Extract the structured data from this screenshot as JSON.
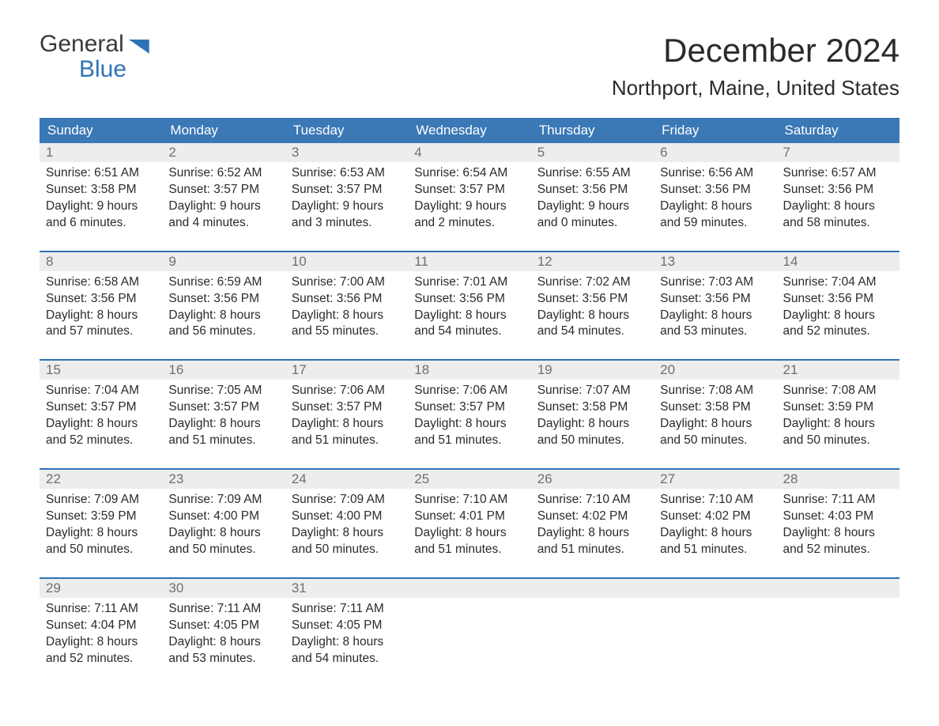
{
  "logo": {
    "line1": "General",
    "line2": "Blue"
  },
  "title": "December 2024",
  "location": "Northport, Maine, United States",
  "colors": {
    "header_bg": "#3b78b6",
    "header_text": "#ffffff",
    "daynum_bg": "#ededed",
    "daynum_text": "#6f6f6f",
    "week_sep": "#2f73b7",
    "body_text": "#2b2b2b",
    "logo_blue": "#2f73b7"
  },
  "day_headers": [
    "Sunday",
    "Monday",
    "Tuesday",
    "Wednesday",
    "Thursday",
    "Friday",
    "Saturday"
  ],
  "weeks": [
    [
      {
        "n": "1",
        "sr": "Sunrise: 6:51 AM",
        "ss": "Sunset: 3:58 PM",
        "d1": "Daylight: 9 hours",
        "d2": "and 6 minutes."
      },
      {
        "n": "2",
        "sr": "Sunrise: 6:52 AM",
        "ss": "Sunset: 3:57 PM",
        "d1": "Daylight: 9 hours",
        "d2": "and 4 minutes."
      },
      {
        "n": "3",
        "sr": "Sunrise: 6:53 AM",
        "ss": "Sunset: 3:57 PM",
        "d1": "Daylight: 9 hours",
        "d2": "and 3 minutes."
      },
      {
        "n": "4",
        "sr": "Sunrise: 6:54 AM",
        "ss": "Sunset: 3:57 PM",
        "d1": "Daylight: 9 hours",
        "d2": "and 2 minutes."
      },
      {
        "n": "5",
        "sr": "Sunrise: 6:55 AM",
        "ss": "Sunset: 3:56 PM",
        "d1": "Daylight: 9 hours",
        "d2": "and 0 minutes."
      },
      {
        "n": "6",
        "sr": "Sunrise: 6:56 AM",
        "ss": "Sunset: 3:56 PM",
        "d1": "Daylight: 8 hours",
        "d2": "and 59 minutes."
      },
      {
        "n": "7",
        "sr": "Sunrise: 6:57 AM",
        "ss": "Sunset: 3:56 PM",
        "d1": "Daylight: 8 hours",
        "d2": "and 58 minutes."
      }
    ],
    [
      {
        "n": "8",
        "sr": "Sunrise: 6:58 AM",
        "ss": "Sunset: 3:56 PM",
        "d1": "Daylight: 8 hours",
        "d2": "and 57 minutes."
      },
      {
        "n": "9",
        "sr": "Sunrise: 6:59 AM",
        "ss": "Sunset: 3:56 PM",
        "d1": "Daylight: 8 hours",
        "d2": "and 56 minutes."
      },
      {
        "n": "10",
        "sr": "Sunrise: 7:00 AM",
        "ss": "Sunset: 3:56 PM",
        "d1": "Daylight: 8 hours",
        "d2": "and 55 minutes."
      },
      {
        "n": "11",
        "sr": "Sunrise: 7:01 AM",
        "ss": "Sunset: 3:56 PM",
        "d1": "Daylight: 8 hours",
        "d2": "and 54 minutes."
      },
      {
        "n": "12",
        "sr": "Sunrise: 7:02 AM",
        "ss": "Sunset: 3:56 PM",
        "d1": "Daylight: 8 hours",
        "d2": "and 54 minutes."
      },
      {
        "n": "13",
        "sr": "Sunrise: 7:03 AM",
        "ss": "Sunset: 3:56 PM",
        "d1": "Daylight: 8 hours",
        "d2": "and 53 minutes."
      },
      {
        "n": "14",
        "sr": "Sunrise: 7:04 AM",
        "ss": "Sunset: 3:56 PM",
        "d1": "Daylight: 8 hours",
        "d2": "and 52 minutes."
      }
    ],
    [
      {
        "n": "15",
        "sr": "Sunrise: 7:04 AM",
        "ss": "Sunset: 3:57 PM",
        "d1": "Daylight: 8 hours",
        "d2": "and 52 minutes."
      },
      {
        "n": "16",
        "sr": "Sunrise: 7:05 AM",
        "ss": "Sunset: 3:57 PM",
        "d1": "Daylight: 8 hours",
        "d2": "and 51 minutes."
      },
      {
        "n": "17",
        "sr": "Sunrise: 7:06 AM",
        "ss": "Sunset: 3:57 PM",
        "d1": "Daylight: 8 hours",
        "d2": "and 51 minutes."
      },
      {
        "n": "18",
        "sr": "Sunrise: 7:06 AM",
        "ss": "Sunset: 3:57 PM",
        "d1": "Daylight: 8 hours",
        "d2": "and 51 minutes."
      },
      {
        "n": "19",
        "sr": "Sunrise: 7:07 AM",
        "ss": "Sunset: 3:58 PM",
        "d1": "Daylight: 8 hours",
        "d2": "and 50 minutes."
      },
      {
        "n": "20",
        "sr": "Sunrise: 7:08 AM",
        "ss": "Sunset: 3:58 PM",
        "d1": "Daylight: 8 hours",
        "d2": "and 50 minutes."
      },
      {
        "n": "21",
        "sr": "Sunrise: 7:08 AM",
        "ss": "Sunset: 3:59 PM",
        "d1": "Daylight: 8 hours",
        "d2": "and 50 minutes."
      }
    ],
    [
      {
        "n": "22",
        "sr": "Sunrise: 7:09 AM",
        "ss": "Sunset: 3:59 PM",
        "d1": "Daylight: 8 hours",
        "d2": "and 50 minutes."
      },
      {
        "n": "23",
        "sr": "Sunrise: 7:09 AM",
        "ss": "Sunset: 4:00 PM",
        "d1": "Daylight: 8 hours",
        "d2": "and 50 minutes."
      },
      {
        "n": "24",
        "sr": "Sunrise: 7:09 AM",
        "ss": "Sunset: 4:00 PM",
        "d1": "Daylight: 8 hours",
        "d2": "and 50 minutes."
      },
      {
        "n": "25",
        "sr": "Sunrise: 7:10 AM",
        "ss": "Sunset: 4:01 PM",
        "d1": "Daylight: 8 hours",
        "d2": "and 51 minutes."
      },
      {
        "n": "26",
        "sr": "Sunrise: 7:10 AM",
        "ss": "Sunset: 4:02 PM",
        "d1": "Daylight: 8 hours",
        "d2": "and 51 minutes."
      },
      {
        "n": "27",
        "sr": "Sunrise: 7:10 AM",
        "ss": "Sunset: 4:02 PM",
        "d1": "Daylight: 8 hours",
        "d2": "and 51 minutes."
      },
      {
        "n": "28",
        "sr": "Sunrise: 7:11 AM",
        "ss": "Sunset: 4:03 PM",
        "d1": "Daylight: 8 hours",
        "d2": "and 52 minutes."
      }
    ],
    [
      {
        "n": "29",
        "sr": "Sunrise: 7:11 AM",
        "ss": "Sunset: 4:04 PM",
        "d1": "Daylight: 8 hours",
        "d2": "and 52 minutes."
      },
      {
        "n": "30",
        "sr": "Sunrise: 7:11 AM",
        "ss": "Sunset: 4:05 PM",
        "d1": "Daylight: 8 hours",
        "d2": "and 53 minutes."
      },
      {
        "n": "31",
        "sr": "Sunrise: 7:11 AM",
        "ss": "Sunset: 4:05 PM",
        "d1": "Daylight: 8 hours",
        "d2": "and 54 minutes."
      },
      null,
      null,
      null,
      null
    ]
  ]
}
